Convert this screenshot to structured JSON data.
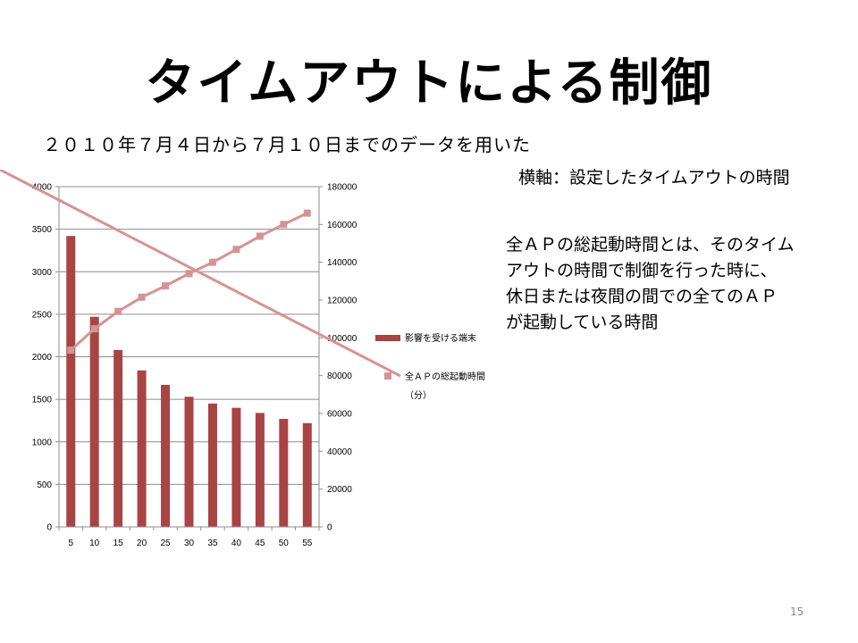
{
  "slide": {
    "title": "タイムアウトによる制御",
    "subtitle": "２０１０年７月４日から７月１０日までのデータを用いた",
    "axis_note": "横軸：設定したタイムアウトの時間",
    "definition_lines": [
      "全ＡＰの総起動時間とは、そのタイム",
      "アウトの時間で制御を行った時に、",
      "休日または夜間の間での全てのＡＰ",
      "が起動している時間"
    ],
    "page_number": "15"
  },
  "colors": {
    "bar": "#a94444",
    "line": "#d69393",
    "grid": "#8c8c8c",
    "axis": "#8c8c8c"
  },
  "chart_data": {
    "type": "bar+line",
    "categories": [
      "5",
      "10",
      "15",
      "20",
      "25",
      "30",
      "35",
      "40",
      "45",
      "50",
      "55"
    ],
    "series": [
      {
        "name": "影響を受ける端末",
        "type": "bar",
        "axis": "left",
        "values": [
          3420,
          2470,
          2080,
          1840,
          1670,
          1530,
          1450,
          1400,
          1340,
          1270,
          1220
        ]
      },
      {
        "name": "全ＡＰの総起動時間（分）",
        "legend_lines": [
          "全ＡＰの総起動時間",
          "（分）"
        ],
        "type": "line",
        "axis": "right",
        "marker": "square",
        "values": [
          93500,
          104800,
          114000,
          121500,
          127500,
          134000,
          140000,
          146800,
          153800,
          160000,
          166000
        ]
      }
    ],
    "y_left": {
      "lim": [
        0,
        4000
      ],
      "ticks": [
        "0",
        "500",
        "1000",
        "1500",
        "2000",
        "2500",
        "3000",
        "3500",
        "4000"
      ]
    },
    "y_right": {
      "lim": [
        0,
        180000
      ],
      "ticks": [
        "0",
        "20000",
        "40000",
        "60000",
        "80000",
        "100000",
        "120000",
        "140000",
        "160000",
        "180000"
      ]
    },
    "grid": true,
    "legend_position": "right"
  }
}
